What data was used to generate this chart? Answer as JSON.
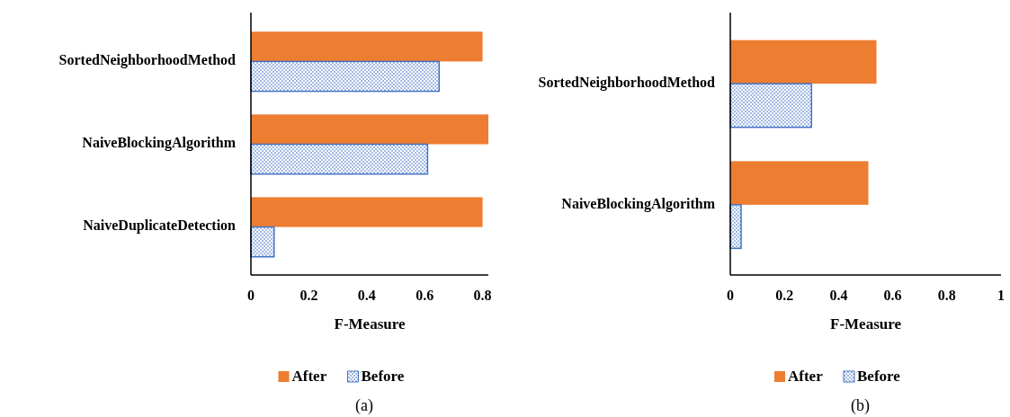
{
  "chart_data": [
    {
      "type": "bar",
      "orientation": "horizontal",
      "categories": [
        "SortedNeighborhoodMethod",
        "NaiveBlockingAlgorithm",
        "NaiveDuplicateDetection"
      ],
      "series": [
        {
          "name": "After",
          "color": "#ed7d31",
          "values": [
            0.8,
            0.82,
            0.8
          ]
        },
        {
          "name": "Before",
          "color": "#4472c4",
          "values": [
            0.65,
            0.61,
            0.08
          ]
        }
      ],
      "xlim": [
        0,
        0.82
      ],
      "xticks": [
        0,
        0.2,
        0.4,
        0.6,
        0.8
      ],
      "xlabel": "F-Measure",
      "legend": "bottom",
      "grid": false,
      "annotations": [
        "(a)"
      ]
    },
    {
      "type": "bar",
      "orientation": "horizontal",
      "categories": [
        "SortedNeighborhoodMethod",
        "NaiveBlockingAlgorithm"
      ],
      "series": [
        {
          "name": "After",
          "color": "#ed7d31",
          "values": [
            0.54,
            0.51
          ]
        },
        {
          "name": "Before",
          "color": "#4472c4",
          "values": [
            0.3,
            0.04
          ]
        }
      ],
      "xlim": [
        0,
        1
      ],
      "xticks": [
        0,
        0.2,
        0.4,
        0.6,
        0.8,
        1
      ],
      "xlabel": "F-Measure",
      "legend": "bottom",
      "grid": false,
      "annotations": [
        "(b)"
      ]
    }
  ]
}
